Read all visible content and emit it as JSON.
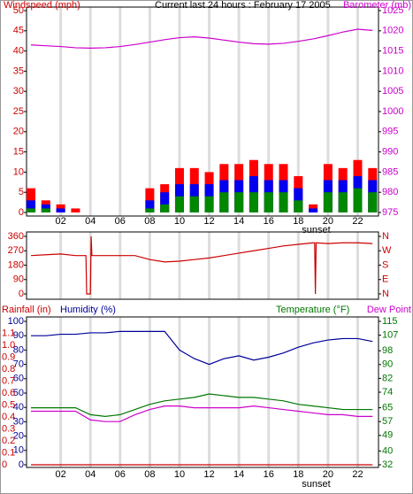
{
  "chart_data": [
    {
      "type": "combo",
      "title": "Current last 24 hours : February 17 2005",
      "y_label": "Windspeed (mph)",
      "y_color": "#cc0000",
      "y2_label": "Barometer (mb)",
      "y2_color": "#cc00cc",
      "x": [
        0,
        1,
        2,
        3,
        4,
        5,
        6,
        7,
        8,
        9,
        10,
        11,
        12,
        13,
        14,
        15,
        16,
        17,
        18,
        19,
        20,
        21,
        22,
        23
      ],
      "xlim": [
        -0.3,
        23.4
      ],
      "xticks": [
        {
          "value": 2,
          "label": "02"
        },
        {
          "value": 4,
          "label": "04"
        },
        {
          "value": 6,
          "label": "06"
        },
        {
          "value": 8,
          "label": "08"
        },
        {
          "value": 10,
          "label": "10"
        },
        {
          "value": 12,
          "label": "12"
        },
        {
          "value": 14,
          "label": "14"
        },
        {
          "value": 16,
          "label": "16"
        },
        {
          "value": 18,
          "label": "18"
        },
        {
          "value": 20,
          "label": "20"
        },
        {
          "value": 22,
          "label": "22"
        }
      ],
      "ylim": [
        0,
        50
      ],
      "yticks": [
        0,
        5,
        10,
        15,
        20,
        25,
        30,
        35,
        40,
        45,
        50
      ],
      "y2lim": [
        975,
        1025
      ],
      "y2ticks": [
        975,
        980,
        985,
        990,
        995,
        1000,
        1005,
        1010,
        1015,
        1020,
        1025
      ],
      "annotation": {
        "text": "sunset",
        "x": 19.2
      },
      "series": [
        {
          "kind": "bar",
          "color": "#ff0000",
          "values": [
            6,
            3,
            2,
            1,
            0,
            0,
            0,
            0,
            6,
            7,
            11,
            11,
            10,
            12,
            12,
            13,
            12,
            12,
            9,
            2,
            12,
            11,
            13,
            11
          ]
        },
        {
          "kind": "bar",
          "color": "#0000ee",
          "values": [
            3,
            2,
            1,
            0,
            0,
            0,
            0,
            0,
            3,
            5,
            7,
            7,
            7,
            8,
            8,
            9,
            8,
            8,
            6,
            1,
            8,
            8,
            9,
            8
          ]
        },
        {
          "kind": "bar",
          "color": "#008800",
          "values": [
            1,
            1,
            0,
            0,
            0,
            0,
            0,
            0,
            1,
            2,
            4,
            4,
            4,
            5,
            5,
            5,
            5,
            5,
            3,
            0,
            5,
            5,
            6,
            5
          ]
        },
        {
          "kind": "line",
          "axis": "y2",
          "color": "#cc00cc",
          "values": [
            1016.5,
            1016.3,
            1016.1,
            1015.8,
            1015.7,
            1015.8,
            1016.1,
            1016.6,
            1017.2,
            1017.8,
            1018.3,
            1018.5,
            1018.2,
            1017.7,
            1017.2,
            1016.8,
            1016.7,
            1016.9,
            1017.4,
            1018.0,
            1018.8,
            1019.7,
            1020.4,
            1020.1
          ]
        }
      ]
    },
    {
      "type": "line",
      "y_color": "#cc0000",
      "y2_color": "#cc0000",
      "x": [
        0,
        1,
        2,
        3,
        3.7,
        3.75,
        4.0,
        4.05,
        4.1,
        5,
        6,
        7,
        8,
        9,
        10,
        11,
        12,
        13,
        14,
        15,
        16,
        17,
        18,
        19,
        19.1,
        19.15,
        19.2,
        20,
        21,
        22,
        23
      ],
      "xlim": [
        -0.3,
        23.4
      ],
      "xticks": [
        2,
        4,
        6,
        8,
        10,
        12,
        14,
        16,
        18,
        20,
        22
      ],
      "ylim": [
        0,
        360
      ],
      "yticks": [
        0,
        90,
        180,
        270,
        360
      ],
      "y2lim": [
        0,
        360
      ],
      "y2ticks": [
        {
          "value": 0,
          "label": "N"
        },
        {
          "value": 90,
          "label": "E"
        },
        {
          "value": 180,
          "label": "S"
        },
        {
          "value": 270,
          "label": "W"
        },
        {
          "value": 360,
          "label": "N"
        }
      ],
      "series": [
        {
          "kind": "line",
          "color": "#cc0000",
          "values": [
            240,
            245,
            250,
            240,
            240,
            0,
            0,
            360,
            240,
            240,
            240,
            240,
            215,
            200,
            205,
            215,
            225,
            240,
            255,
            270,
            285,
            300,
            310,
            320,
            320,
            0,
            320,
            315,
            320,
            320,
            315
          ]
        }
      ]
    },
    {
      "type": "line",
      "rain_label": "Rainfall (in)",
      "rain_color": "#cc0000",
      "y_label": "Humidity (%)",
      "y_color": "#000099",
      "y2_label": "Temperature (°F)",
      "y2_color": "#007700",
      "x": [
        0,
        1,
        2,
        3,
        4,
        5,
        6,
        7,
        8,
        9,
        10,
        11,
        12,
        13,
        14,
        15,
        16,
        17,
        18,
        19,
        20,
        21,
        22,
        23
      ],
      "xlim": [
        -0.3,
        23.4
      ],
      "xticks": [
        {
          "value": 2,
          "label": "02"
        },
        {
          "value": 4,
          "label": "04"
        },
        {
          "value": 6,
          "label": "06"
        },
        {
          "value": 8,
          "label": "08"
        },
        {
          "value": 10,
          "label": "10"
        },
        {
          "value": 12,
          "label": "12"
        },
        {
          "value": 14,
          "label": "14"
        },
        {
          "value": 16,
          "label": "16"
        },
        {
          "value": 18,
          "label": "18"
        },
        {
          "value": 20,
          "label": "20"
        },
        {
          "value": 22,
          "label": "22"
        }
      ],
      "ylim": [
        0,
        100
      ],
      "yticks": [
        0,
        10,
        20,
        30,
        40,
        50,
        60,
        70,
        80,
        90,
        100
      ],
      "rain_lim": [
        0,
        1.2
      ],
      "rain_ticks": [
        0,
        0.1,
        0.2,
        0.3,
        0.4,
        0.5,
        0.6,
        0.7,
        0.8,
        0.9,
        {
          "value": 1,
          "label": "1.0"
        },
        1.1
      ],
      "y2lim": [
        32,
        115
      ],
      "y2ticks": [
        32,
        40,
        49,
        57,
        65,
        74,
        82,
        90,
        98,
        107,
        115
      ],
      "annotation": {
        "text": "sunset",
        "x": 19.2
      },
      "series": [
        {
          "kind": "line",
          "axis": "rain",
          "color": "#cc0000",
          "values": [
            0,
            0,
            0,
            0,
            0,
            0,
            0,
            0,
            0,
            0,
            0,
            0,
            0,
            0,
            0,
            0,
            0,
            0,
            0,
            0,
            0,
            0,
            0,
            0
          ]
        },
        {
          "kind": "line",
          "color": "#000099",
          "values": [
            90,
            90,
            91,
            91,
            92,
            92,
            93,
            93,
            93,
            93,
            80,
            74,
            70,
            74,
            76,
            73,
            75,
            78,
            82,
            85,
            87,
            88,
            88,
            86
          ]
        },
        {
          "kind": "line",
          "axis": "y2",
          "color": "#007700",
          "values": [
            65,
            65,
            65,
            65,
            61,
            60,
            61,
            64,
            67,
            69,
            70,
            71,
            73,
            72,
            71,
            71,
            70,
            69,
            67,
            66,
            65,
            64,
            64,
            64
          ]
        },
        {
          "kind": "line",
          "axis": "y2",
          "name": "Dew Point",
          "color": "#cc00cc",
          "values": [
            63,
            63,
            63,
            63,
            58,
            57,
            57,
            61,
            64,
            66,
            66,
            65,
            65,
            65,
            65,
            66,
            65,
            64,
            63,
            62,
            61,
            61,
            60,
            60
          ]
        }
      ]
    }
  ]
}
